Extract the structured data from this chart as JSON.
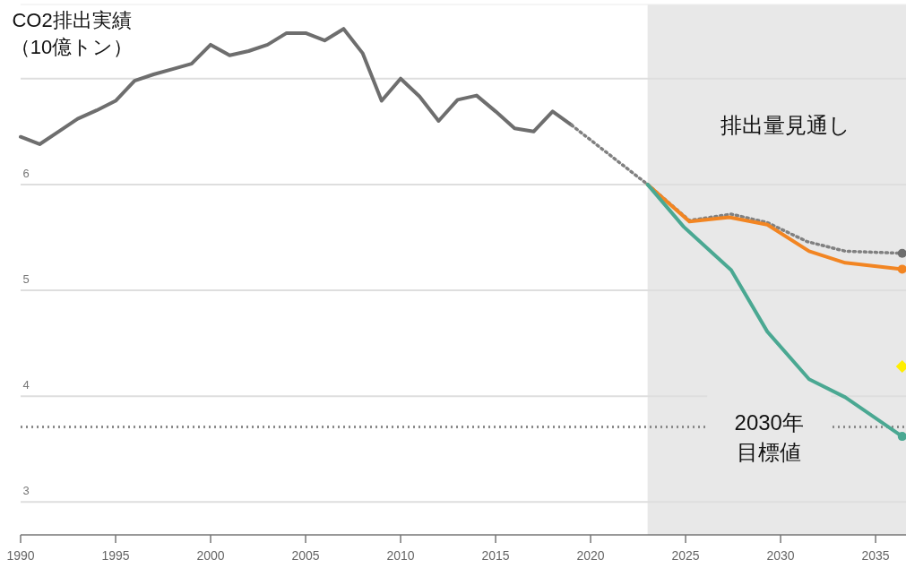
{
  "chart_data": {
    "type": "line",
    "ylabel": "CO2排出実績（10億トン）",
    "xlim": [
      1990,
      2036.6
    ],
    "ylim": [
      2.69,
      7.7
    ],
    "xticks": [
      1990,
      1995,
      2000,
      2005,
      2010,
      2015,
      2020,
      2025,
      2030,
      {
        "value": 2035,
        "label": "2035"
      }
    ],
    "yticks": [
      3,
      4,
      5,
      6,
      {
        "value": 7,
        "label": null
      }
    ],
    "grid": "y",
    "bands": [
      {
        "axis": "x",
        "from": 2023,
        "to": 2036.6,
        "label": "排出量見通し",
        "color": "#e8e8e8"
      }
    ],
    "ref_lines": [
      {
        "axis": "y",
        "value": 3.71,
        "label": "2030年目標値",
        "color": "#8a8a8a",
        "line_style": "dotted"
      }
    ],
    "series": [
      {
        "color": "#6e6e6e",
        "line_style": "solid",
        "x": [
          1990,
          1991,
          1992,
          1993,
          1994,
          1995,
          1996,
          1997,
          1998,
          1999,
          2000,
          2001,
          2002,
          2003,
          2004,
          2005,
          2006,
          2007,
          2008,
          2009,
          2010,
          2011,
          2012,
          2013,
          2014,
          2015,
          2016,
          2017,
          2018,
          2019
        ],
        "values": [
          6.45,
          6.38,
          6.5,
          6.62,
          6.7,
          6.79,
          6.98,
          7.04,
          7.09,
          7.14,
          7.32,
          7.22,
          7.26,
          7.32,
          7.43,
          7.43,
          7.36,
          7.47,
          7.24,
          6.79,
          7.0,
          6.83,
          6.6,
          6.8,
          6.84,
          6.69,
          6.53,
          6.5,
          6.69,
          6.56
        ]
      },
      {
        "color": "#808080",
        "line_style": "dotted",
        "x": [
          2019,
          2023,
          2025.2,
          2027.4,
          2029.3,
          2031.4,
          2033.4,
          2036.4
        ],
        "values": [
          6.56,
          6.0,
          5.66,
          5.72,
          5.64,
          5.46,
          5.37,
          5.35
        ]
      },
      {
        "color": "#f28522",
        "line_style": "solid",
        "x": [
          2023,
          2025.2,
          2027.3,
          2029.3,
          2031.5,
          2033.4,
          2036.4
        ],
        "values": [
          6.0,
          5.65,
          5.69,
          5.62,
          5.37,
          5.26,
          5.2
        ]
      },
      {
        "color": "#4aa892",
        "line_style": "solid",
        "x": [
          2023,
          2024.9,
          2027.4,
          2029.3,
          2031.5,
          2033.4,
          2036.4
        ],
        "values": [
          6.0,
          5.6,
          5.19,
          4.61,
          4.16,
          3.99,
          3.62
        ]
      },
      {
        "type": "scatter",
        "color": "#6e6e6e",
        "marker": "circle",
        "x": [
          2036.4
        ],
        "values": [
          5.35
        ]
      },
      {
        "type": "scatter",
        "color": "#f28522",
        "marker": "circle",
        "x": [
          2036.4
        ],
        "values": [
          5.2
        ]
      },
      {
        "type": "scatter",
        "color": "#4aa892",
        "marker": "circle",
        "x": [
          2036.4
        ],
        "values": [
          3.62
        ]
      },
      {
        "type": "scatter",
        "color": "#ffee00",
        "marker": "diamond",
        "x": [
          2036.4
        ],
        "values": [
          4.28
        ]
      }
    ]
  }
}
